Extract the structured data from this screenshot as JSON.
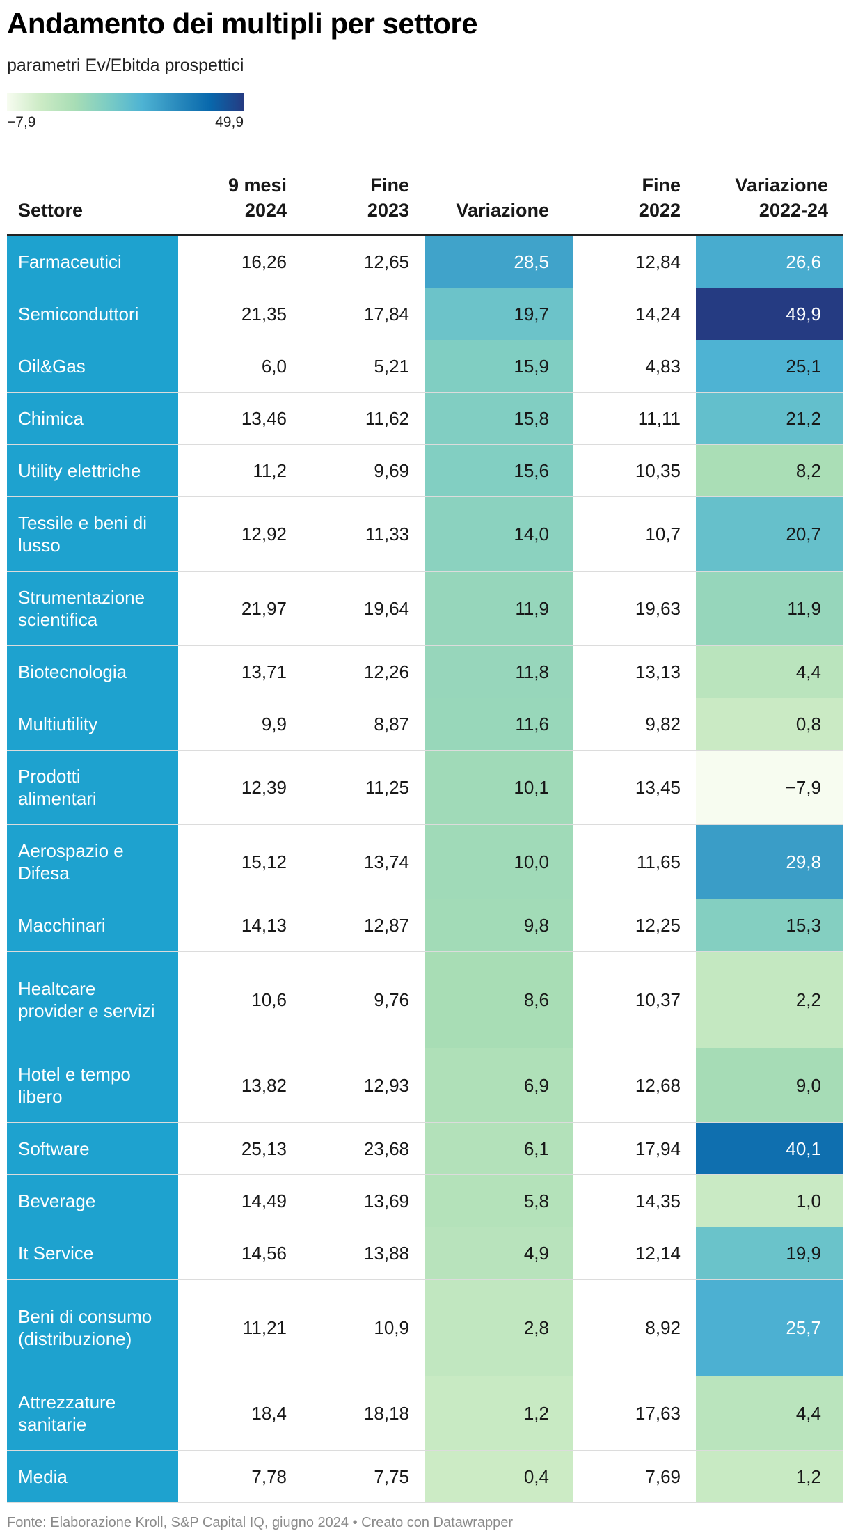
{
  "header": {
    "title": "Andamento dei multipli per settore",
    "subtitle": "parametri Ev/Ebitda prospettici"
  },
  "legend": {
    "min_label": "−7,9",
    "max_label": "49,9",
    "min": -7.9,
    "max": 49.9
  },
  "colors": {
    "sector_bg": "#1ea2cf",
    "scale": [
      "#f7fcf0",
      "#ccebc5",
      "#a8ddb5",
      "#7bccc4",
      "#4eb3d3",
      "#2b8cbe",
      "#0868ac",
      "#253b82"
    ]
  },
  "chart_data": {
    "type": "table",
    "title": "Andamento dei multipli per settore",
    "subtitle": "parametri Ev/Ebitda prospettici",
    "columns": [
      {
        "key": "sector",
        "label": "Settore"
      },
      {
        "key": "m9_2024",
        "label": "9 mesi\n2024"
      },
      {
        "key": "end_2023",
        "label": "Fine\n2023"
      },
      {
        "key": "change",
        "label": "Variazione"
      },
      {
        "key": "end_2022",
        "label": "Fine\n2022"
      },
      {
        "key": "change_22_24",
        "label": "Variazione\n2022-24"
      }
    ],
    "rows": [
      {
        "sector": "Farmaceutici",
        "m9_2024": "16,26",
        "end_2023": "12,65",
        "change": "28,5",
        "end_2022": "12,84",
        "change_22_24": "26,6"
      },
      {
        "sector": "Semiconduttori",
        "m9_2024": "21,35",
        "end_2023": "17,84",
        "change": "19,7",
        "end_2022": "14,24",
        "change_22_24": "49,9"
      },
      {
        "sector": "Oil&Gas",
        "m9_2024": "6,0",
        "end_2023": "5,21",
        "change": "15,9",
        "end_2022": "4,83",
        "change_22_24": "25,1"
      },
      {
        "sector": "Chimica",
        "m9_2024": "13,46",
        "end_2023": "11,62",
        "change": "15,8",
        "end_2022": "11,11",
        "change_22_24": "21,2"
      },
      {
        "sector": "Utility elettriche",
        "m9_2024": "11,2",
        "end_2023": "9,69",
        "change": "15,6",
        "end_2022": "10,35",
        "change_22_24": "8,2"
      },
      {
        "sector": "Tessile e beni di lusso",
        "m9_2024": "12,92",
        "end_2023": "11,33",
        "change": "14,0",
        "end_2022": "10,7",
        "change_22_24": "20,7"
      },
      {
        "sector": "Strumentazione scientifica",
        "m9_2024": "21,97",
        "end_2023": "19,64",
        "change": "11,9",
        "end_2022": "19,63",
        "change_22_24": "11,9"
      },
      {
        "sector": "Biotecnologia",
        "m9_2024": "13,71",
        "end_2023": "12,26",
        "change": "11,8",
        "end_2022": "13,13",
        "change_22_24": "4,4"
      },
      {
        "sector": "Multiutility",
        "m9_2024": "9,9",
        "end_2023": "8,87",
        "change": "11,6",
        "end_2022": "9,82",
        "change_22_24": "0,8"
      },
      {
        "sector": "Prodotti alimentari",
        "m9_2024": "12,39",
        "end_2023": "11,25",
        "change": "10,1",
        "end_2022": "13,45",
        "change_22_24": "−7,9"
      },
      {
        "sector": "Aerospazio e Difesa",
        "m9_2024": "15,12",
        "end_2023": "13,74",
        "change": "10,0",
        "end_2022": "11,65",
        "change_22_24": "29,8"
      },
      {
        "sector": "Macchinari",
        "m9_2024": "14,13",
        "end_2023": "12,87",
        "change": "9,8",
        "end_2022": "12,25",
        "change_22_24": "15,3"
      },
      {
        "sector": "Healtcare provider e servizi",
        "m9_2024": "10,6",
        "end_2023": "9,76",
        "change": "8,6",
        "end_2022": "10,37",
        "change_22_24": "2,2"
      },
      {
        "sector": "Hotel e tempo libero",
        "m9_2024": "13,82",
        "end_2023": "12,93",
        "change": "6,9",
        "end_2022": "12,68",
        "change_22_24": "9,0"
      },
      {
        "sector": "Software",
        "m9_2024": "25,13",
        "end_2023": "23,68",
        "change": "6,1",
        "end_2022": "17,94",
        "change_22_24": "40,1"
      },
      {
        "sector": "Beverage",
        "m9_2024": "14,49",
        "end_2023": "13,69",
        "change": "5,8",
        "end_2022": "14,35",
        "change_22_24": "1,0"
      },
      {
        "sector": "It Service",
        "m9_2024": "14,56",
        "end_2023": "13,88",
        "change": "4,9",
        "end_2022": "12,14",
        "change_22_24": "19,9"
      },
      {
        "sector": "Beni di consumo (distribuzione)",
        "m9_2024": "11,21",
        "end_2023": "10,9",
        "change": "2,8",
        "end_2022": "8,92",
        "change_22_24": "25,7"
      },
      {
        "sector": "Attrezzature sanitarie",
        "m9_2024": "18,4",
        "end_2023": "18,18",
        "change": "1,2",
        "end_2022": "17,63",
        "change_22_24": "4,4"
      },
      {
        "sector": "Media",
        "m9_2024": "7,78",
        "end_2023": "7,75",
        "change": "0,4",
        "end_2022": "7,69",
        "change_22_24": "1,2"
      }
    ]
  },
  "footer": {
    "text": "Fonte: Elaborazione Kroll, S&P Capital IQ, giugno 2024 • Creato con Datawrapper"
  }
}
